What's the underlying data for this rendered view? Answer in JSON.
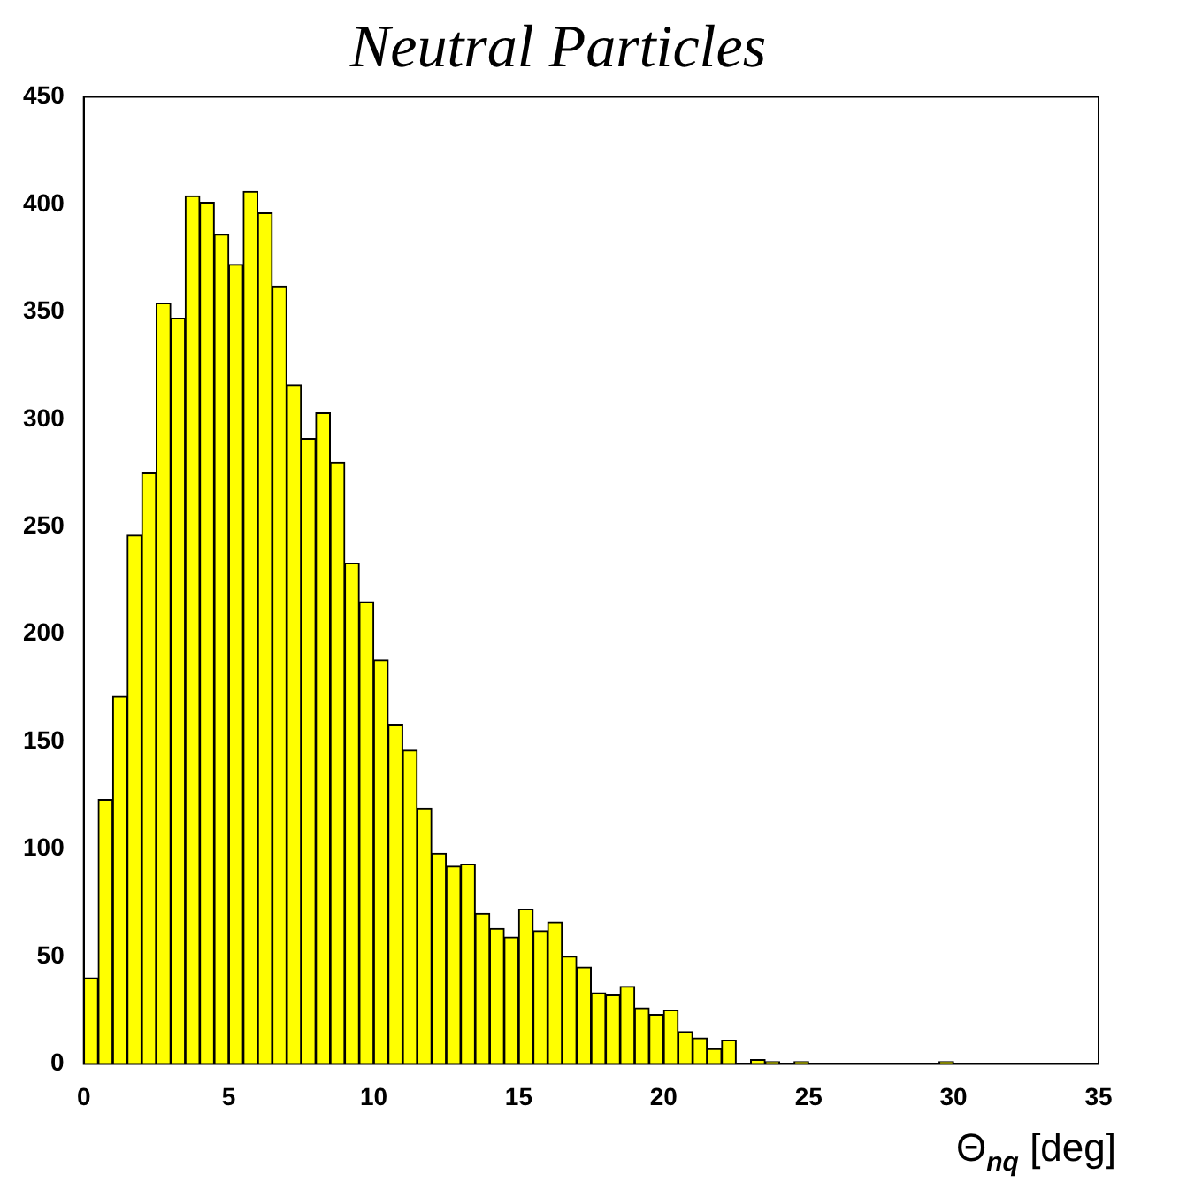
{
  "chart_data": {
    "type": "histogram",
    "title": "Neutral Particles",
    "xlabel": "Θ$_{nq}$ [deg]",
    "bins": [
      0,
      0.5,
      1,
      1.5,
      2,
      2.5,
      3,
      3.5,
      4,
      4.5,
      5,
      5.5,
      6,
      6.5,
      7,
      7.5,
      8,
      8.5,
      9,
      9.5,
      10,
      10.5,
      11,
      11.5,
      12,
      12.5,
      13,
      13.5,
      14,
      14.5,
      15,
      15.5,
      16,
      16.5,
      17,
      17.5,
      18,
      18.5,
      19,
      19.5,
      20,
      20.5,
      21,
      21.5,
      22,
      22.5,
      23,
      23.5,
      24,
      24.5,
      25,
      25.5,
      26,
      26.5,
      27,
      27.5,
      28,
      28.5,
      29,
      29.5,
      30,
      30.5,
      31,
      31.5,
      32,
      32.5,
      33,
      33.5,
      34,
      34.5,
      35
    ],
    "values": [
      40,
      123,
      171,
      246,
      275,
      354,
      347,
      404,
      401,
      386,
      372,
      406,
      396,
      362,
      316,
      291,
      303,
      280,
      233,
      215,
      188,
      158,
      146,
      119,
      98,
      92,
      93,
      70,
      63,
      59,
      72,
      62,
      66,
      50,
      45,
      33,
      32,
      36,
      26,
      23,
      25,
      15,
      12,
      7,
      11,
      0,
      2,
      1,
      0,
      1,
      0,
      0,
      0,
      0,
      0,
      0,
      0,
      0,
      0,
      1,
      0,
      0,
      0,
      0,
      0,
      0,
      0,
      0,
      0,
      0
    ],
    "color": "#ffff00",
    "xlim": [
      0,
      35
    ],
    "xticks": [
      0,
      5,
      10,
      15,
      20,
      25,
      30,
      35
    ],
    "ylim": [
      0,
      450
    ],
    "yticks": [
      0,
      50,
      100,
      150,
      200,
      250,
      300,
      350,
      400,
      450
    ],
    "grid": false,
    "legend": false
  }
}
